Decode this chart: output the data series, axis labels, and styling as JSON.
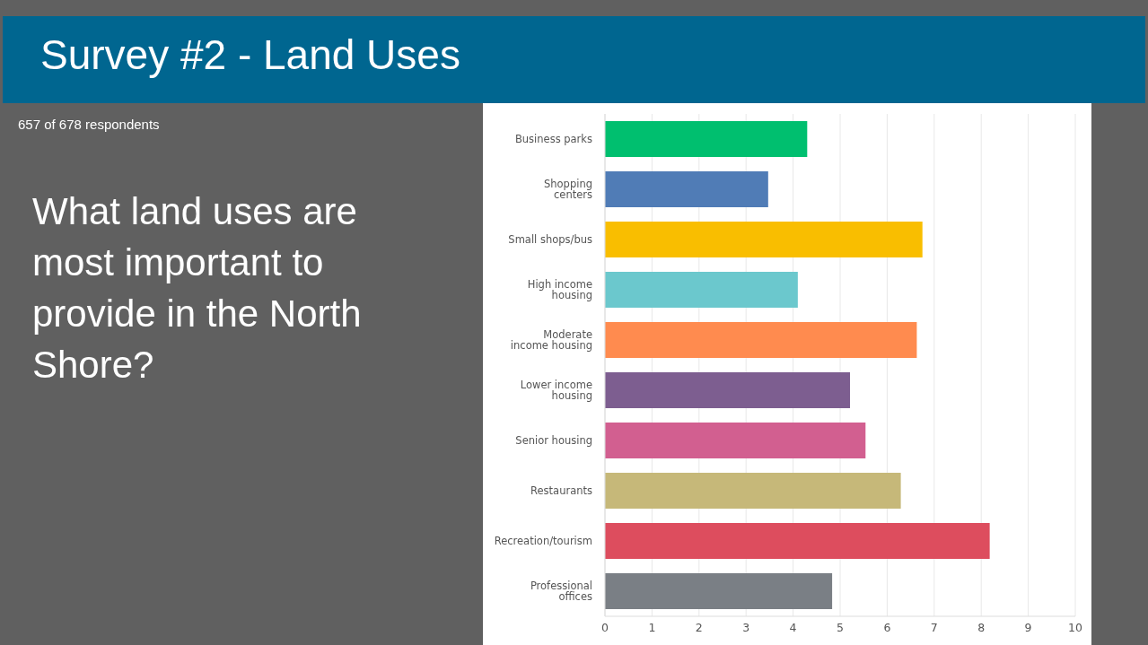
{
  "chart_data": {
    "type": "bar",
    "orientation": "horizontal",
    "title": "Survey #2 - Land Uses",
    "subtitle": "What land uses are most important to provide in the North Shore?",
    "annotations": [
      "657 of 678 respondents"
    ],
    "categories": [
      "Business parks",
      "Shopping centers",
      "Small shops/bus",
      "High income housing",
      "Moderate income housing",
      "Lower income housing",
      "Senior housing",
      "Restaurants",
      "Recreation/tourism",
      "Professional offices"
    ],
    "values": [
      4.3,
      3.47,
      6.75,
      4.1,
      6.63,
      5.21,
      5.54,
      6.29,
      8.18,
      4.83
    ],
    "colors": [
      "#00bf6f",
      "#507cb6",
      "#f9be00",
      "#6bc8cd",
      "#ff8b4f",
      "#7d5e90",
      "#d25f90",
      "#c6b879",
      "#dd4d5e",
      "#7a7f85"
    ],
    "xlim": [
      0,
      10
    ],
    "xticks": [
      0,
      1,
      2,
      3,
      4,
      5,
      6,
      7,
      8,
      9,
      10
    ],
    "grid": "x"
  }
}
